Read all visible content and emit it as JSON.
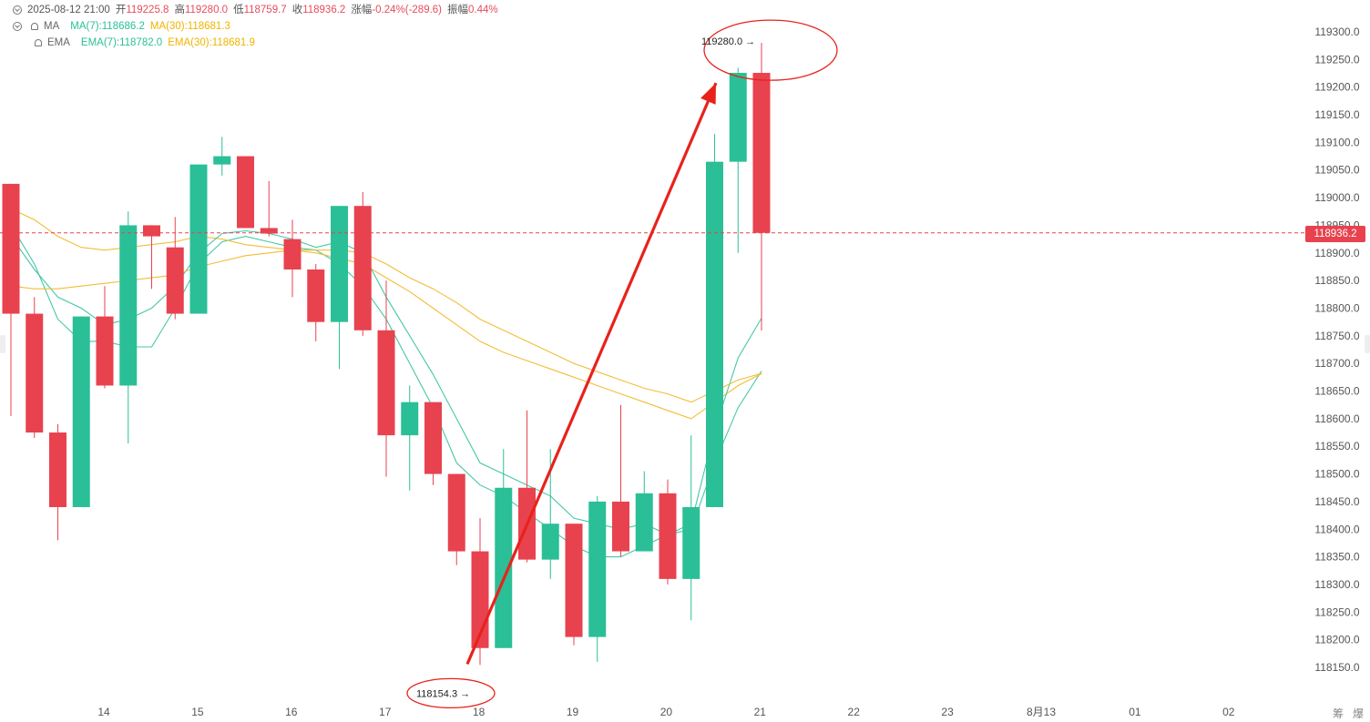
{
  "legend": {
    "ohlc": {
      "datetime": "2025-08-12 21:00",
      "open_label": "开",
      "open": "119225.8",
      "high_label": "高",
      "high": "119280.0",
      "low_label": "低",
      "low": "118759.7",
      "close_label": "收",
      "close": "118936.2",
      "change_label": "涨幅",
      "change": "-0.24%(-289.6)",
      "amplitude_label": "振幅",
      "amplitude": "0.44%"
    },
    "ma": {
      "label": "MA",
      "ma7": "MA(7):118686.2",
      "ma30": "MA(30):118681.3"
    },
    "ema": {
      "label": "EMA",
      "ema7": "EMA(7):118782.0",
      "ema30": "EMA(30):118681.9"
    }
  },
  "last_price_label": "118936.2",
  "corner_labels": [
    "筹",
    "爆"
  ],
  "colors": {
    "up": "#2bbf97",
    "down": "#e8424f",
    "ma_short": "#3cc4a2",
    "ma_long": "#f2b92c",
    "annotation": "#e8221b",
    "price_line": "#e8424f"
  },
  "chart_data": {
    "type": "candlestick",
    "y_range": [
      118110,
      119330
    ],
    "yticks": [
      118150,
      118200,
      118250,
      118300,
      118350,
      118400,
      118450,
      118500,
      118550,
      118600,
      118650,
      118700,
      118750,
      118800,
      118850,
      118900,
      118950,
      119000,
      119050,
      119100,
      119150,
      119200,
      119250,
      119300
    ],
    "x_ticks": [
      "14",
      "15",
      "16",
      "17",
      "18",
      "19",
      "20",
      "21",
      "22",
      "23",
      "8月13",
      "01",
      "02"
    ],
    "last_price": 118936.2,
    "candles": [
      {
        "o": 119025,
        "h": 119025,
        "l": 118605,
        "c": 118790
      },
      {
        "o": 118790,
        "h": 118820,
        "l": 118565,
        "c": 118575
      },
      {
        "o": 118575,
        "h": 118590,
        "l": 118380,
        "c": 118440
      },
      {
        "o": 118440,
        "h": 118785,
        "l": 118440,
        "c": 118785
      },
      {
        "o": 118785,
        "h": 118840,
        "l": 118655,
        "c": 118660
      },
      {
        "o": 118660,
        "h": 118975,
        "l": 118555,
        "c": 118950
      },
      {
        "o": 118950,
        "h": 118950,
        "l": 118835,
        "c": 118930
      },
      {
        "o": 118910,
        "h": 118965,
        "l": 118780,
        "c": 118790
      },
      {
        "o": 118790,
        "h": 119060,
        "l": 118790,
        "c": 119060
      },
      {
        "o": 119060,
        "h": 119110,
        "l": 119040,
        "c": 119075
      },
      {
        "o": 119075,
        "h": 119075,
        "l": 118945,
        "c": 118945
      },
      {
        "o": 118945,
        "h": 119030,
        "l": 118930,
        "c": 118935
      },
      {
        "o": 118925,
        "h": 118960,
        "l": 118820,
        "c": 118870
      },
      {
        "o": 118870,
        "h": 118880,
        "l": 118740,
        "c": 118775
      },
      {
        "o": 118775,
        "h": 118985,
        "l": 118690,
        "c": 118985
      },
      {
        "o": 118985,
        "h": 119010,
        "l": 118750,
        "c": 118760
      },
      {
        "o": 118760,
        "h": 118850,
        "l": 118495,
        "c": 118570
      },
      {
        "o": 118570,
        "h": 118660,
        "l": 118470,
        "c": 118630
      },
      {
        "o": 118630,
        "h": 118630,
        "l": 118480,
        "c": 118500
      },
      {
        "o": 118500,
        "h": 118500,
        "l": 118335,
        "c": 118360
      },
      {
        "o": 118360,
        "h": 118420,
        "l": 118154.3,
        "c": 118185
      },
      {
        "o": 118185,
        "h": 118545,
        "l": 118185,
        "c": 118475
      },
      {
        "o": 118475,
        "h": 118615,
        "l": 118340,
        "c": 118345
      },
      {
        "o": 118345,
        "h": 118545,
        "l": 118310,
        "c": 118410
      },
      {
        "o": 118410,
        "h": 118410,
        "l": 118190,
        "c": 118205
      },
      {
        "o": 118205,
        "h": 118460,
        "l": 118160,
        "c": 118450
      },
      {
        "o": 118450,
        "h": 118625,
        "l": 118350,
        "c": 118360
      },
      {
        "o": 118360,
        "h": 118505,
        "l": 118360,
        "c": 118465
      },
      {
        "o": 118465,
        "h": 118490,
        "l": 118300,
        "c": 118310
      },
      {
        "o": 118310,
        "h": 118570,
        "l": 118235,
        "c": 118440
      },
      {
        "o": 118440,
        "h": 119115,
        "l": 118440,
        "c": 119065
      },
      {
        "o": 119065,
        "h": 119235,
        "l": 118900,
        "c": 119225.8
      },
      {
        "o": 119225.8,
        "h": 119280,
        "l": 118759.7,
        "c": 118936.2
      }
    ],
    "series": [
      {
        "name": "MA(7)",
        "values": [
          118950,
          118880,
          118780,
          118740,
          118740,
          118730,
          118730,
          118800,
          118880,
          118920,
          118930,
          118920,
          118910,
          118905,
          118880,
          118840,
          118780,
          118700,
          118620,
          118520,
          118480,
          118460,
          118430,
          118400,
          118370,
          118350,
          118350,
          118370,
          118390,
          118400,
          118520,
          118620,
          118686.2
        ]
      },
      {
        "name": "MA(30)",
        "values": [
          118980,
          118960,
          118930,
          118910,
          118905,
          118910,
          118915,
          118920,
          118930,
          118925,
          118915,
          118910,
          118905,
          118900,
          118890,
          118880,
          118855,
          118830,
          118800,
          118770,
          118740,
          118720,
          118705,
          118690,
          118675,
          118660,
          118645,
          118630,
          118615,
          118600,
          118630,
          118660,
          118681.3
        ]
      },
      {
        "name": "EMA(7)",
        "values": [
          118930,
          118870,
          118820,
          118800,
          118770,
          118780,
          118800,
          118840,
          118900,
          118935,
          118940,
          118935,
          118925,
          118910,
          118920,
          118900,
          118820,
          118750,
          118680,
          118600,
          118520,
          118500,
          118480,
          118460,
          118420,
          118410,
          118400,
          118410,
          118390,
          118410,
          118580,
          118710,
          118782.0
        ]
      },
      {
        "name": "EMA(30)",
        "values": [
          118840,
          118835,
          118835,
          118840,
          118845,
          118850,
          118855,
          118860,
          118875,
          118885,
          118895,
          118900,
          118905,
          118905,
          118905,
          118900,
          118880,
          118855,
          118835,
          118810,
          118780,
          118760,
          118740,
          118720,
          118700,
          118685,
          118670,
          118655,
          118645,
          118630,
          118650,
          118670,
          118681.9
        ]
      }
    ],
    "annotations": {
      "high": {
        "value": 119280.0,
        "label": "119280.0"
      },
      "low": {
        "value": 118154.3,
        "label": "118154.3"
      }
    }
  }
}
